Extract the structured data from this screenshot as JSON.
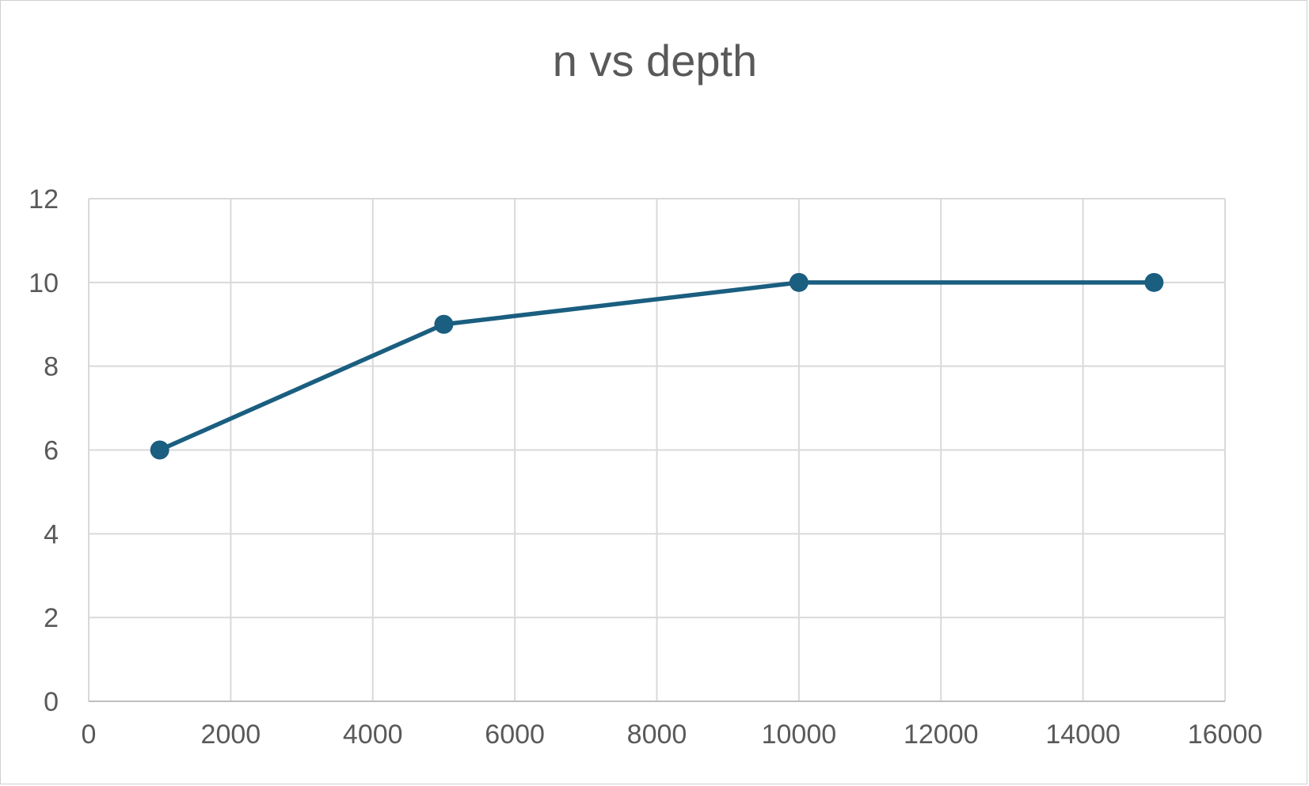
{
  "chart_data": {
    "type": "line",
    "title": "n vs depth",
    "xlabel": "",
    "ylabel": "",
    "xlim": [
      0,
      16000
    ],
    "ylim": [
      0,
      12
    ],
    "x_ticks": [
      0,
      2000,
      4000,
      6000,
      8000,
      10000,
      12000,
      14000,
      16000
    ],
    "y_ticks": [
      0,
      2,
      4,
      6,
      8,
      10,
      12
    ],
    "grid": true,
    "legend": "none",
    "series": [
      {
        "color": "#1a5e80",
        "marker": "circle",
        "x": [
          1000,
          5000,
          10000,
          15000
        ],
        "y": [
          6,
          9,
          10,
          10
        ]
      }
    ]
  }
}
